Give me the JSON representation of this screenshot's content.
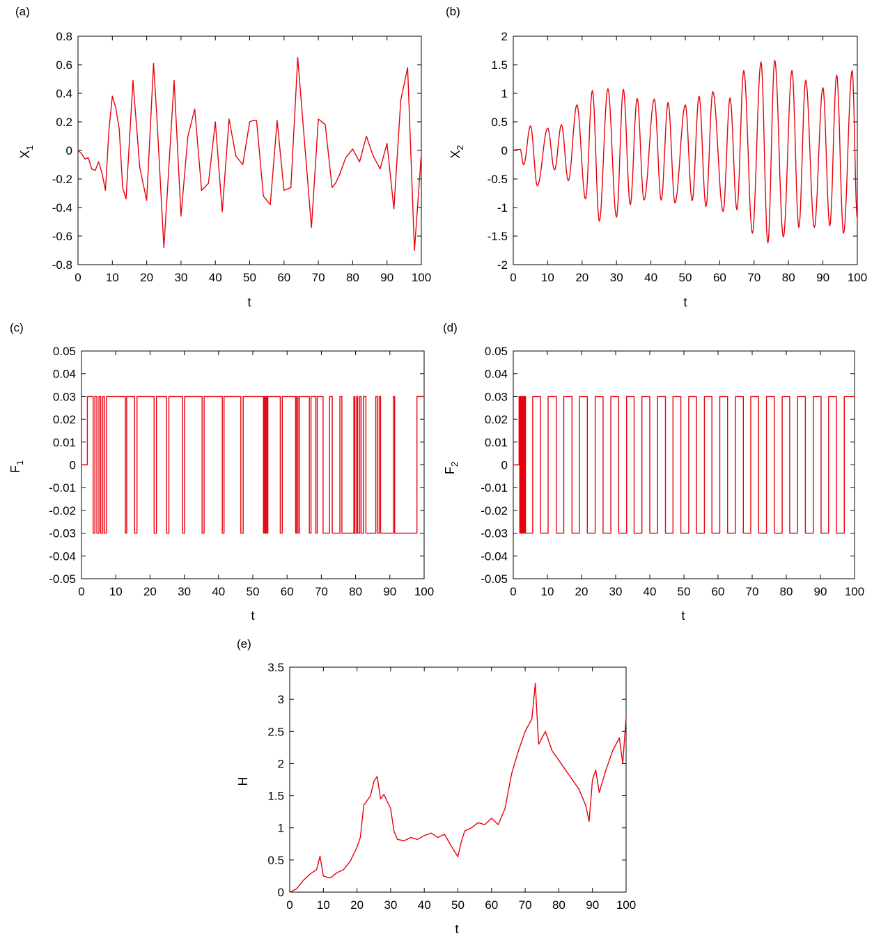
{
  "colors": {
    "series": "#e8000b",
    "axes": "#000000",
    "background": "#ffffff"
  },
  "chart_data": [
    {
      "panel": "(a)",
      "type": "line",
      "xlabel": "t",
      "ylabel": "X",
      "ylabel_sub": "1",
      "xlim": [
        0,
        100
      ],
      "ylim": [
        -0.8,
        0.8
      ],
      "xticks": [
        0,
        10,
        20,
        30,
        40,
        50,
        60,
        70,
        80,
        90,
        100
      ],
      "yticks": [
        -0.8,
        -0.6,
        -0.4,
        -0.2,
        0,
        0.2,
        0.4,
        0.6,
        0.8
      ],
      "ytick_labels": [
        "-0.8",
        "-0.6",
        "-0.4",
        "-0.2",
        "0",
        "0.2",
        "0.4",
        "0.6",
        "0.8"
      ],
      "grid": false,
      "series": [
        {
          "x": [
            0,
            1,
            2,
            3,
            4,
            5,
            6,
            7,
            8,
            9,
            10,
            11,
            12,
            13,
            14,
            16,
            18,
            20,
            22,
            23,
            25,
            26,
            28,
            30,
            32,
            34,
            36,
            38,
            40,
            42,
            44,
            46,
            48,
            50,
            51,
            52,
            54,
            56,
            58,
            60,
            62,
            64,
            66,
            68,
            70,
            72,
            74,
            75,
            76,
            78,
            80,
            82,
            84,
            86,
            88,
            90,
            92,
            94,
            96,
            98,
            100
          ],
          "y": [
            0,
            -0.02,
            -0.06,
            -0.05,
            -0.13,
            -0.14,
            -0.08,
            -0.16,
            -0.28,
            0.14,
            0.38,
            0.3,
            0.15,
            -0.26,
            -0.34,
            0.49,
            -0.12,
            -0.35,
            0.61,
            0.22,
            -0.68,
            -0.3,
            0.49,
            -0.46,
            0.1,
            0.29,
            -0.28,
            -0.23,
            0.2,
            -0.43,
            0.22,
            -0.04,
            -0.1,
            0.2,
            0.21,
            0.21,
            -0.32,
            -0.38,
            0.21,
            -0.28,
            -0.26,
            0.65,
            0.05,
            -0.54,
            0.22,
            0.18,
            -0.26,
            -0.23,
            -0.18,
            -0.05,
            0.01,
            -0.08,
            0.1,
            -0.04,
            -0.13,
            0.05,
            -0.41,
            0.35,
            0.58,
            -0.7,
            -0.02
          ]
        }
      ]
    },
    {
      "panel": "(b)",
      "type": "line",
      "xlabel": "t",
      "ylabel": "X",
      "ylabel_sub": "2",
      "xlim": [
        0,
        100
      ],
      "ylim": [
        -2,
        2
      ],
      "xticks": [
        0,
        10,
        20,
        30,
        40,
        50,
        60,
        70,
        80,
        90,
        100
      ],
      "yticks": [
        -2,
        -1.5,
        -1,
        -0.5,
        0,
        0.5,
        1,
        1.5,
        2
      ],
      "ytick_labels": [
        "-2",
        "-1.5",
        "-1",
        "-0.5",
        "0",
        "0.5",
        "1",
        "1.5",
        "2"
      ],
      "grid": false,
      "oscillation": {
        "period": 4.5,
        "peaks": [
          [
            0.5,
            0.01
          ],
          [
            2,
            0.02
          ],
          [
            5,
            0.43
          ],
          [
            10,
            0.39
          ],
          [
            14,
            0.45
          ],
          [
            18.5,
            0.8
          ],
          [
            23,
            1.05
          ],
          [
            27.5,
            1.08
          ],
          [
            32,
            1.07
          ],
          [
            36,
            0.91
          ],
          [
            41,
            0.9
          ],
          [
            45,
            0.84
          ],
          [
            50,
            0.8
          ],
          [
            54,
            0.95
          ],
          [
            58,
            1.03
          ],
          [
            63,
            0.92
          ],
          [
            67,
            1.4
          ],
          [
            72,
            1.55
          ],
          [
            76,
            1.58
          ],
          [
            81,
            1.4
          ],
          [
            85,
            1.23
          ],
          [
            90,
            1.1
          ],
          [
            94,
            1.32
          ],
          [
            98.5,
            1.4
          ]
        ],
        "troughs": [
          [
            3,
            -0.25
          ],
          [
            7,
            -0.62
          ],
          [
            12,
            -0.34
          ],
          [
            16,
            -0.53
          ],
          [
            21,
            -0.85
          ],
          [
            25,
            -1.24
          ],
          [
            30,
            -1.17
          ],
          [
            34,
            -0.95
          ],
          [
            38,
            -0.87
          ],
          [
            43,
            -0.87
          ],
          [
            47,
            -0.92
          ],
          [
            52,
            -0.88
          ],
          [
            56,
            -0.98
          ],
          [
            61,
            -1.07
          ],
          [
            65,
            -1.04
          ],
          [
            69.5,
            -1.45
          ],
          [
            74,
            -1.62
          ],
          [
            78.5,
            -1.52
          ],
          [
            83,
            -1.35
          ],
          [
            87.5,
            -1.35
          ],
          [
            92,
            -1.32
          ],
          [
            96,
            -1.45
          ],
          [
            100,
            -1.2
          ]
        ]
      }
    },
    {
      "panel": "(c)",
      "type": "line",
      "step": true,
      "xlabel": "t",
      "ylabel": "F",
      "ylabel_sub": "1",
      "xlim": [
        0,
        100
      ],
      "ylim": [
        -0.05,
        0.05
      ],
      "xticks": [
        0,
        10,
        20,
        30,
        40,
        50,
        60,
        70,
        80,
        90,
        100
      ],
      "yticks": [
        -0.05,
        -0.04,
        -0.03,
        -0.02,
        -0.01,
        0,
        0.01,
        0.02,
        0.03,
        0.04,
        0.05
      ],
      "ytick_labels": [
        "-0.05",
        "-0.04",
        "-0.03",
        "-0.02",
        "-0.01",
        "0",
        "0.01",
        "0.02",
        "0.03",
        "0.04",
        "0.05"
      ],
      "grid": false,
      "level_high": 0.03,
      "level_low": -0.03,
      "initial_value": 0,
      "switch_times": [
        1.7,
        3.4,
        3.9,
        4.5,
        5.1,
        5.6,
        6.2,
        6.7,
        7.3,
        12.8,
        13.2,
        15.5,
        16.2,
        21.2,
        21.9,
        24.8,
        25.5,
        29.5,
        30.1,
        35.2,
        35.8,
        41.1,
        41.6,
        46.5,
        47.2,
        53.1,
        53.3,
        53.6,
        53.8,
        54.1,
        54.4,
        58.0,
        58.6,
        62.5,
        62.8,
        63.2,
        63.6,
        66.5,
        67.0,
        68.4,
        68.8,
        70.5,
        72.4,
        73.2,
        75.4,
        76.0,
        79.5,
        79.8,
        80.3,
        80.6,
        81.2,
        81.6,
        82.3,
        83.0,
        85.9,
        86.4,
        86.9,
        87.3,
        91.0,
        91.4,
        97.9
      ]
    },
    {
      "panel": "(d)",
      "type": "line",
      "step": true,
      "xlabel": "t",
      "ylabel": "F",
      "ylabel_sub": "2",
      "xlim": [
        0,
        100
      ],
      "ylim": [
        -0.05,
        0.05
      ],
      "xticks": [
        0,
        10,
        20,
        30,
        40,
        50,
        60,
        70,
        80,
        90,
        100
      ],
      "yticks": [
        -0.05,
        -0.04,
        -0.03,
        -0.02,
        -0.01,
        0,
        0.01,
        0.02,
        0.03,
        0.04,
        0.05
      ],
      "ytick_labels": [
        "-0.05",
        "-0.04",
        "-0.03",
        "-0.02",
        "-0.01",
        "0",
        "0.01",
        "0.02",
        "0.03",
        "0.04",
        "0.05"
      ],
      "grid": false,
      "level_high": 0.03,
      "level_low": -0.03,
      "initial_value": 0,
      "switch_times": [
        1.7,
        1.9,
        2.1,
        2.3,
        2.5,
        2.7,
        2.9,
        3.1,
        3.3,
        3.6,
        5.7,
        8.0,
        10.2,
        12.6,
        14.8,
        17.2,
        19.4,
        21.7,
        24.0,
        26.3,
        28.6,
        30.9,
        33.2,
        35.4,
        37.7,
        40.0,
        42.3,
        44.6,
        46.8,
        49.1,
        51.4,
        53.7,
        56.0,
        58.2,
        60.5,
        62.8,
        65.1,
        67.4,
        69.6,
        71.9,
        74.2,
        76.5,
        78.8,
        81.0,
        83.3,
        85.6,
        87.9,
        90.2,
        92.4,
        94.7,
        97.0
      ]
    },
    {
      "panel": "(e)",
      "type": "line",
      "xlabel": "t",
      "ylabel": "H",
      "xlim": [
        0,
        100
      ],
      "ylim": [
        0,
        3.5
      ],
      "xticks": [
        0,
        10,
        20,
        30,
        40,
        50,
        60,
        70,
        80,
        90,
        100
      ],
      "yticks": [
        0,
        0.5,
        1,
        1.5,
        2,
        2.5,
        3,
        3.5
      ],
      "ytick_labels": [
        "0",
        "0.5",
        "1",
        "1.5",
        "2",
        "2.5",
        "3",
        "3.5"
      ],
      "grid": false,
      "series": [
        {
          "x": [
            0,
            2,
            4,
            6,
            8,
            9,
            10,
            12,
            14,
            16,
            18,
            20,
            21,
            22,
            24,
            25,
            26,
            27,
            28,
            30,
            31,
            32,
            34,
            36,
            38,
            40,
            42,
            44,
            46,
            48,
            50,
            51,
            52,
            54,
            56,
            58,
            60,
            62,
            64,
            66,
            68,
            70,
            72,
            73,
            74,
            76,
            78,
            80,
            82,
            84,
            86,
            88,
            89,
            90,
            91,
            92,
            94,
            96,
            98,
            99,
            100
          ],
          "y": [
            0,
            0.05,
            0.18,
            0.28,
            0.35,
            0.56,
            0.25,
            0.22,
            0.3,
            0.35,
            0.48,
            0.7,
            0.85,
            1.35,
            1.5,
            1.72,
            1.8,
            1.45,
            1.52,
            1.3,
            0.95,
            0.82,
            0.8,
            0.85,
            0.82,
            0.88,
            0.92,
            0.85,
            0.9,
            0.72,
            0.55,
            0.78,
            0.95,
            1.0,
            1.08,
            1.05,
            1.15,
            1.05,
            1.3,
            1.85,
            2.2,
            2.5,
            2.7,
            3.25,
            2.3,
            2.5,
            2.2,
            2.05,
            1.9,
            1.75,
            1.6,
            1.35,
            1.1,
            1.75,
            1.9,
            1.55,
            1.9,
            2.2,
            2.4,
            2.0,
            2.72
          ]
        }
      ]
    }
  ]
}
